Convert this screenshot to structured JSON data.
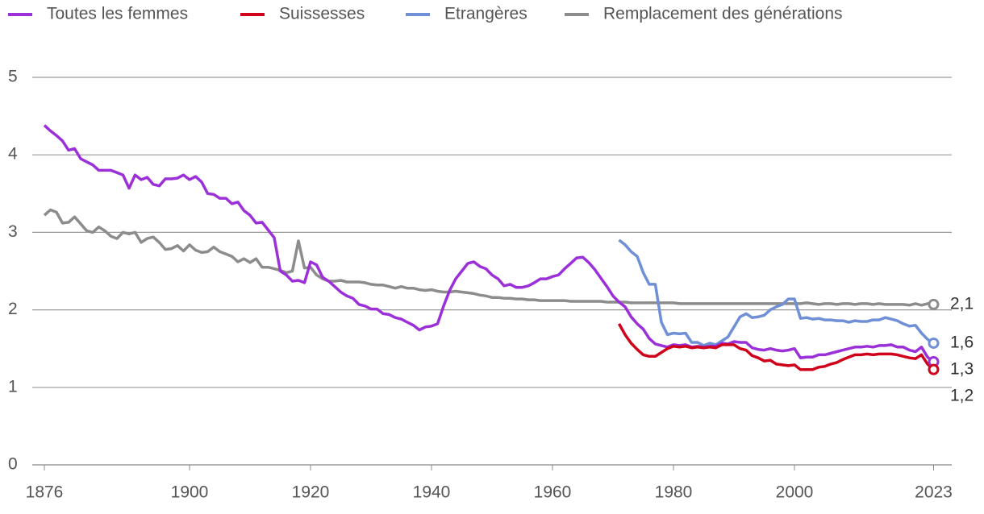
{
  "chart_data": {
    "type": "line",
    "x": [
      1876,
      1877,
      1878,
      1879,
      1880,
      1881,
      1882,
      1883,
      1884,
      1885,
      1886,
      1887,
      1888,
      1889,
      1890,
      1891,
      1892,
      1893,
      1894,
      1895,
      1896,
      1897,
      1898,
      1899,
      1900,
      1901,
      1902,
      1903,
      1904,
      1905,
      1906,
      1907,
      1908,
      1909,
      1910,
      1911,
      1912,
      1913,
      1914,
      1915,
      1916,
      1917,
      1918,
      1919,
      1920,
      1921,
      1922,
      1923,
      1924,
      1925,
      1926,
      1927,
      1928,
      1929,
      1930,
      1931,
      1932,
      1933,
      1934,
      1935,
      1936,
      1937,
      1938,
      1939,
      1940,
      1941,
      1942,
      1943,
      1944,
      1945,
      1946,
      1947,
      1948,
      1949,
      1950,
      1951,
      1952,
      1953,
      1954,
      1955,
      1956,
      1957,
      1958,
      1959,
      1960,
      1961,
      1962,
      1963,
      1964,
      1965,
      1966,
      1967,
      1968,
      1969,
      1970,
      1971,
      1972,
      1973,
      1974,
      1975,
      1976,
      1977,
      1978,
      1979,
      1980,
      1981,
      1982,
      1983,
      1984,
      1985,
      1986,
      1987,
      1988,
      1989,
      1990,
      1991,
      1992,
      1993,
      1994,
      1995,
      1996,
      1997,
      1998,
      1999,
      2000,
      2001,
      2002,
      2003,
      2004,
      2005,
      2006,
      2007,
      2008,
      2009,
      2010,
      2011,
      2012,
      2013,
      2014,
      2015,
      2016,
      2017,
      2018,
      2019,
      2020,
      2021,
      2022,
      2023
    ],
    "series": [
      {
        "name": "Toutes les femmes",
        "color": "#9b30d9",
        "end_label": "1,3",
        "values": [
          4.38,
          4.31,
          4.25,
          4.18,
          4.06,
          4.08,
          3.95,
          3.91,
          3.87,
          3.8,
          3.8,
          3.8,
          3.77,
          3.74,
          3.57,
          3.74,
          3.68,
          3.71,
          3.62,
          3.6,
          3.69,
          3.69,
          3.7,
          3.74,
          3.68,
          3.72,
          3.65,
          3.5,
          3.49,
          3.44,
          3.44,
          3.37,
          3.39,
          3.28,
          3.22,
          3.12,
          3.13,
          3.03,
          2.93,
          2.5,
          2.45,
          2.37,
          2.38,
          2.35,
          2.62,
          2.58,
          2.42,
          2.37,
          2.3,
          2.23,
          2.18,
          2.15,
          2.07,
          2.05,
          2.01,
          2.01,
          1.95,
          1.94,
          1.9,
          1.88,
          1.84,
          1.8,
          1.74,
          1.78,
          1.79,
          1.82,
          2.05,
          2.25,
          2.4,
          2.5,
          2.6,
          2.62,
          2.56,
          2.53,
          2.45,
          2.4,
          2.31,
          2.33,
          2.29,
          2.29,
          2.31,
          2.35,
          2.4,
          2.4,
          2.43,
          2.45,
          2.53,
          2.6,
          2.67,
          2.68,
          2.61,
          2.52,
          2.41,
          2.3,
          2.18,
          2.1,
          2.04,
          1.91,
          1.82,
          1.75,
          1.63,
          1.56,
          1.54,
          1.52,
          1.55,
          1.54,
          1.55,
          1.52,
          1.53,
          1.52,
          1.53,
          1.53,
          1.57,
          1.56,
          1.59,
          1.58,
          1.58,
          1.51,
          1.49,
          1.48,
          1.5,
          1.48,
          1.47,
          1.48,
          1.5,
          1.38,
          1.39,
          1.39,
          1.42,
          1.42,
          1.44,
          1.46,
          1.48,
          1.5,
          1.52,
          1.52,
          1.53,
          1.52,
          1.54,
          1.54,
          1.55,
          1.52,
          1.52,
          1.48,
          1.46,
          1.52,
          1.39,
          1.33
        ]
      },
      {
        "name": "Suissesses",
        "color": "#d0021b",
        "end_label": "1,2",
        "values": [
          null,
          null,
          null,
          null,
          null,
          null,
          null,
          null,
          null,
          null,
          null,
          null,
          null,
          null,
          null,
          null,
          null,
          null,
          null,
          null,
          null,
          null,
          null,
          null,
          null,
          null,
          null,
          null,
          null,
          null,
          null,
          null,
          null,
          null,
          null,
          null,
          null,
          null,
          null,
          null,
          null,
          null,
          null,
          null,
          null,
          null,
          null,
          null,
          null,
          null,
          null,
          null,
          null,
          null,
          null,
          null,
          null,
          null,
          null,
          null,
          null,
          null,
          null,
          null,
          null,
          null,
          null,
          null,
          null,
          null,
          null,
          null,
          null,
          null,
          null,
          null,
          null,
          null,
          null,
          null,
          null,
          null,
          null,
          null,
          null,
          null,
          null,
          null,
          null,
          null,
          null,
          null,
          null,
          null,
          null,
          1.82,
          1.68,
          1.57,
          1.49,
          1.42,
          1.4,
          1.4,
          1.45,
          1.5,
          1.53,
          1.52,
          1.53,
          1.51,
          1.52,
          1.51,
          1.52,
          1.51,
          1.55,
          1.55,
          1.55,
          1.5,
          1.48,
          1.41,
          1.38,
          1.34,
          1.35,
          1.3,
          1.29,
          1.28,
          1.29,
          1.23,
          1.23,
          1.23,
          1.26,
          1.27,
          1.3,
          1.32,
          1.36,
          1.39,
          1.42,
          1.42,
          1.43,
          1.42,
          1.43,
          1.43,
          1.43,
          1.42,
          1.4,
          1.38,
          1.37,
          1.42,
          1.3,
          1.23
        ]
      },
      {
        "name": "Etrangères",
        "color": "#6f8fd6",
        "end_label": "1,6",
        "values": [
          null,
          null,
          null,
          null,
          null,
          null,
          null,
          null,
          null,
          null,
          null,
          null,
          null,
          null,
          null,
          null,
          null,
          null,
          null,
          null,
          null,
          null,
          null,
          null,
          null,
          null,
          null,
          null,
          null,
          null,
          null,
          null,
          null,
          null,
          null,
          null,
          null,
          null,
          null,
          null,
          null,
          null,
          null,
          null,
          null,
          null,
          null,
          null,
          null,
          null,
          null,
          null,
          null,
          null,
          null,
          null,
          null,
          null,
          null,
          null,
          null,
          null,
          null,
          null,
          null,
          null,
          null,
          null,
          null,
          null,
          null,
          null,
          null,
          null,
          null,
          null,
          null,
          null,
          null,
          null,
          null,
          null,
          null,
          null,
          null,
          null,
          null,
          null,
          null,
          null,
          null,
          null,
          null,
          null,
          null,
          2.9,
          2.84,
          2.75,
          2.69,
          2.48,
          2.33,
          2.33,
          1.84,
          1.68,
          1.7,
          1.69,
          1.7,
          1.58,
          1.58,
          1.54,
          1.57,
          1.55,
          1.6,
          1.65,
          1.78,
          1.91,
          1.95,
          1.9,
          1.91,
          1.93,
          2.0,
          2.04,
          2.07,
          2.14,
          2.14,
          1.89,
          1.9,
          1.88,
          1.89,
          1.87,
          1.87,
          1.86,
          1.86,
          1.84,
          1.86,
          1.85,
          1.85,
          1.87,
          1.87,
          1.9,
          1.88,
          1.86,
          1.82,
          1.79,
          1.8,
          1.7,
          1.62,
          1.57
        ]
      },
      {
        "name": "Remplacement des générations",
        "color": "#8c8c8c",
        "end_label": "2,1",
        "values": [
          3.22,
          3.29,
          3.26,
          3.12,
          3.13,
          3.2,
          3.11,
          3.02,
          3.0,
          3.07,
          3.02,
          2.95,
          2.92,
          3.0,
          2.98,
          3.0,
          2.87,
          2.92,
          2.94,
          2.87,
          2.78,
          2.79,
          2.83,
          2.76,
          2.84,
          2.77,
          2.74,
          2.75,
          2.81,
          2.75,
          2.72,
          2.69,
          2.62,
          2.66,
          2.61,
          2.66,
          2.55,
          2.55,
          2.53,
          2.51,
          2.48,
          2.5,
          2.89,
          2.54,
          2.55,
          2.45,
          2.4,
          2.37,
          2.37,
          2.38,
          2.36,
          2.36,
          2.36,
          2.35,
          2.33,
          2.32,
          2.32,
          2.3,
          2.28,
          2.3,
          2.28,
          2.28,
          2.26,
          2.25,
          2.26,
          2.24,
          2.23,
          2.23,
          2.24,
          2.23,
          2.22,
          2.21,
          2.19,
          2.18,
          2.16,
          2.16,
          2.15,
          2.15,
          2.14,
          2.14,
          2.13,
          2.13,
          2.12,
          2.12,
          2.12,
          2.12,
          2.12,
          2.11,
          2.11,
          2.11,
          2.11,
          2.11,
          2.11,
          2.1,
          2.1,
          2.1,
          2.1,
          2.09,
          2.09,
          2.09,
          2.09,
          2.09,
          2.09,
          2.09,
          2.09,
          2.08,
          2.08,
          2.08,
          2.08,
          2.08,
          2.08,
          2.08,
          2.08,
          2.08,
          2.08,
          2.08,
          2.08,
          2.08,
          2.08,
          2.08,
          2.08,
          2.08,
          2.08,
          2.08,
          2.08,
          2.08,
          2.09,
          2.08,
          2.07,
          2.08,
          2.08,
          2.07,
          2.08,
          2.08,
          2.07,
          2.08,
          2.08,
          2.07,
          2.08,
          2.07,
          2.07,
          2.07,
          2.07,
          2.06,
          2.08,
          2.06,
          2.08,
          2.07
        ]
      }
    ],
    "xlim": [
      1874,
      2026
    ],
    "xticks": [
      1876,
      1900,
      1920,
      1940,
      1960,
      1980,
      2000,
      2023
    ],
    "ylim": [
      0,
      5
    ],
    "yticks": [
      0,
      1,
      2,
      3,
      4,
      5
    ],
    "grid": true
  }
}
